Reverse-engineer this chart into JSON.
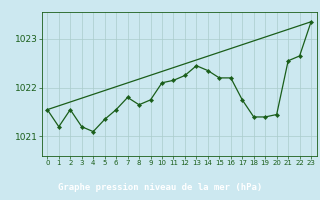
{
  "x": [
    0,
    1,
    2,
    3,
    4,
    5,
    6,
    7,
    8,
    9,
    10,
    11,
    12,
    13,
    14,
    15,
    16,
    17,
    18,
    19,
    20,
    21,
    22,
    23
  ],
  "y_detail": [
    1021.55,
    1021.2,
    1021.55,
    1021.2,
    1021.1,
    1021.35,
    1021.55,
    1021.8,
    1021.65,
    1021.75,
    1022.1,
    1022.15,
    1022.25,
    1022.45,
    1022.35,
    1022.2,
    1022.2,
    1021.75,
    1021.4,
    1021.4,
    1021.45,
    1022.55,
    1022.65,
    1023.35
  ],
  "trend_x": [
    0,
    23
  ],
  "trend_y": [
    1021.55,
    1023.35
  ],
  "line_color": "#1a5e1a",
  "bg_color": "#cce8f0",
  "grid_color": "#aacccc",
  "bottom_bar_color": "#3a7a3a",
  "title": "Graphe pression niveau de la mer (hPa)",
  "xlabel_ticks": [
    "0",
    "1",
    "2",
    "3",
    "4",
    "5",
    "6",
    "7",
    "8",
    "9",
    "10",
    "11",
    "12",
    "13",
    "14",
    "15",
    "16",
    "17",
    "18",
    "19",
    "20",
    "21",
    "22",
    "23"
  ],
  "yticks": [
    1021,
    1022,
    1023
  ],
  "ylim": [
    1020.6,
    1023.55
  ],
  "xlim": [
    -0.5,
    23.5
  ]
}
